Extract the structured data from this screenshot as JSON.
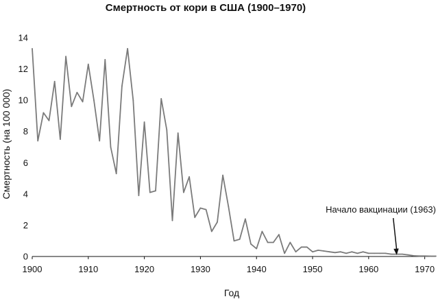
{
  "chart_data": {
    "type": "line",
    "title": "Смертность от кори в США (1900–1970)",
    "xlabel": "Год",
    "ylabel": "Смертность (на 100 000)",
    "xlim": [
      1900,
      1972
    ],
    "ylim": [
      0,
      14
    ],
    "xticks": [
      1900,
      1910,
      1920,
      1930,
      1940,
      1950,
      1960,
      1970
    ],
    "yticks": [
      0,
      2,
      4,
      6,
      8,
      10,
      12,
      14
    ],
    "grid": false,
    "line_color": "#7a7a7a",
    "series": [
      {
        "x": [
          1900,
          1901,
          1902,
          1903,
          1904,
          1905,
          1906,
          1907,
          1908,
          1909,
          1910,
          1911,
          1912,
          1913,
          1914,
          1915,
          1916,
          1917,
          1918,
          1919,
          1920,
          1921,
          1922,
          1923,
          1924,
          1925,
          1926,
          1927,
          1928,
          1929,
          1930,
          1931,
          1932,
          1933,
          1934,
          1935,
          1936,
          1937,
          1938,
          1939,
          1940,
          1941,
          1942,
          1943,
          1944,
          1945,
          1946,
          1947,
          1948,
          1949,
          1950,
          1951,
          1952,
          1953,
          1954,
          1955,
          1956,
          1957,
          1958,
          1959,
          1960,
          1961,
          1962,
          1963,
          1964,
          1965,
          1966,
          1967,
          1968,
          1969,
          1970,
          1971,
          1972
        ],
        "y": [
          13.3,
          7.4,
          9.2,
          8.7,
          11.2,
          7.5,
          12.8,
          9.6,
          10.5,
          9.9,
          12.3,
          10.0,
          7.4,
          12.6,
          7.0,
          5.3,
          10.9,
          13.3,
          10.0,
          3.9,
          8.6,
          4.1,
          4.2,
          10.1,
          8.1,
          2.3,
          7.9,
          4.1,
          5.1,
          2.5,
          3.1,
          3.0,
          1.6,
          2.2,
          5.2,
          3.2,
          1.0,
          1.1,
          2.4,
          0.8,
          0.5,
          1.6,
          0.9,
          0.9,
          1.4,
          0.2,
          0.9,
          0.3,
          0.6,
          0.6,
          0.3,
          0.4,
          0.35,
          0.3,
          0.25,
          0.3,
          0.2,
          0.3,
          0.2,
          0.3,
          0.2,
          0.2,
          0.2,
          0.2,
          0.15,
          0.15,
          0.15,
          0.1,
          0.05,
          0.03,
          0.03,
          0.02,
          0.02
        ]
      }
    ],
    "annotations": [
      {
        "text": "Начало вакцинации (1963)",
        "x": 1965,
        "y": 0.05
      }
    ]
  }
}
